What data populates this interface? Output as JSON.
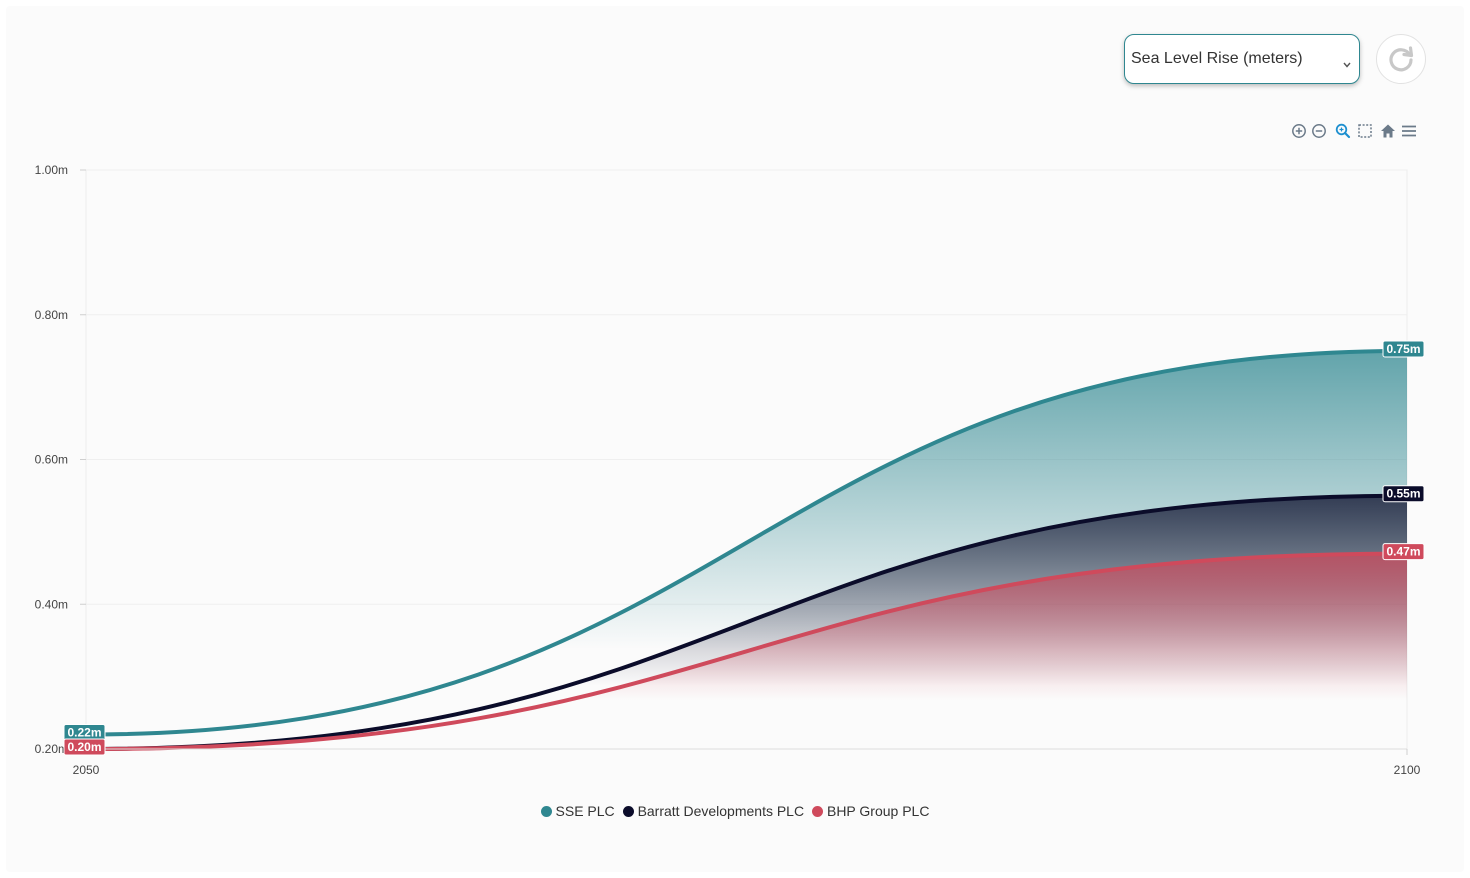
{
  "controls": {
    "metric_select": {
      "value": "Sea Level Rise (meters)"
    },
    "refresh_icon": "refresh-icon"
  },
  "toolbar": {
    "icons": [
      "zoom-in-icon",
      "zoom-out-icon",
      "zoom-select-icon",
      "pan-select-icon",
      "home-reset-icon",
      "menu-icon"
    ],
    "active_color": "#1d8fcf",
    "idle_color": "#6b7a89"
  },
  "chart_data": {
    "type": "area",
    "x": [
      2050,
      2100
    ],
    "xlim": [
      2050,
      2100
    ],
    "ylim": [
      0.2,
      1.0
    ],
    "y_ticks": [
      {
        "value": 0.2,
        "label": "0.20m"
      },
      {
        "value": 0.4,
        "label": "0.40m"
      },
      {
        "value": 0.6,
        "label": "0.60m"
      },
      {
        "value": 0.8,
        "label": "0.80m"
      },
      {
        "value": 1.0,
        "label": "1.00m"
      }
    ],
    "x_ticks": [
      {
        "value": 2050,
        "label": "2050"
      },
      {
        "value": 2100,
        "label": "2100"
      }
    ],
    "grid": true,
    "legend_position": "bottom-center",
    "series": [
      {
        "name": "SSE PLC",
        "color": "#2f8790",
        "values": [
          0.22,
          0.75
        ],
        "start_label": "0.22m",
        "end_label": "0.75m"
      },
      {
        "name": "Barratt Developments PLC",
        "color": "#0b0c2a",
        "values": [
          0.2,
          0.55
        ],
        "start_label": "",
        "end_label": "0.55m"
      },
      {
        "name": "BHP Group PLC",
        "color": "#cf4a5c",
        "values": [
          0.2,
          0.47
        ],
        "start_label": "0.20m",
        "end_label": "0.47m"
      }
    ]
  }
}
